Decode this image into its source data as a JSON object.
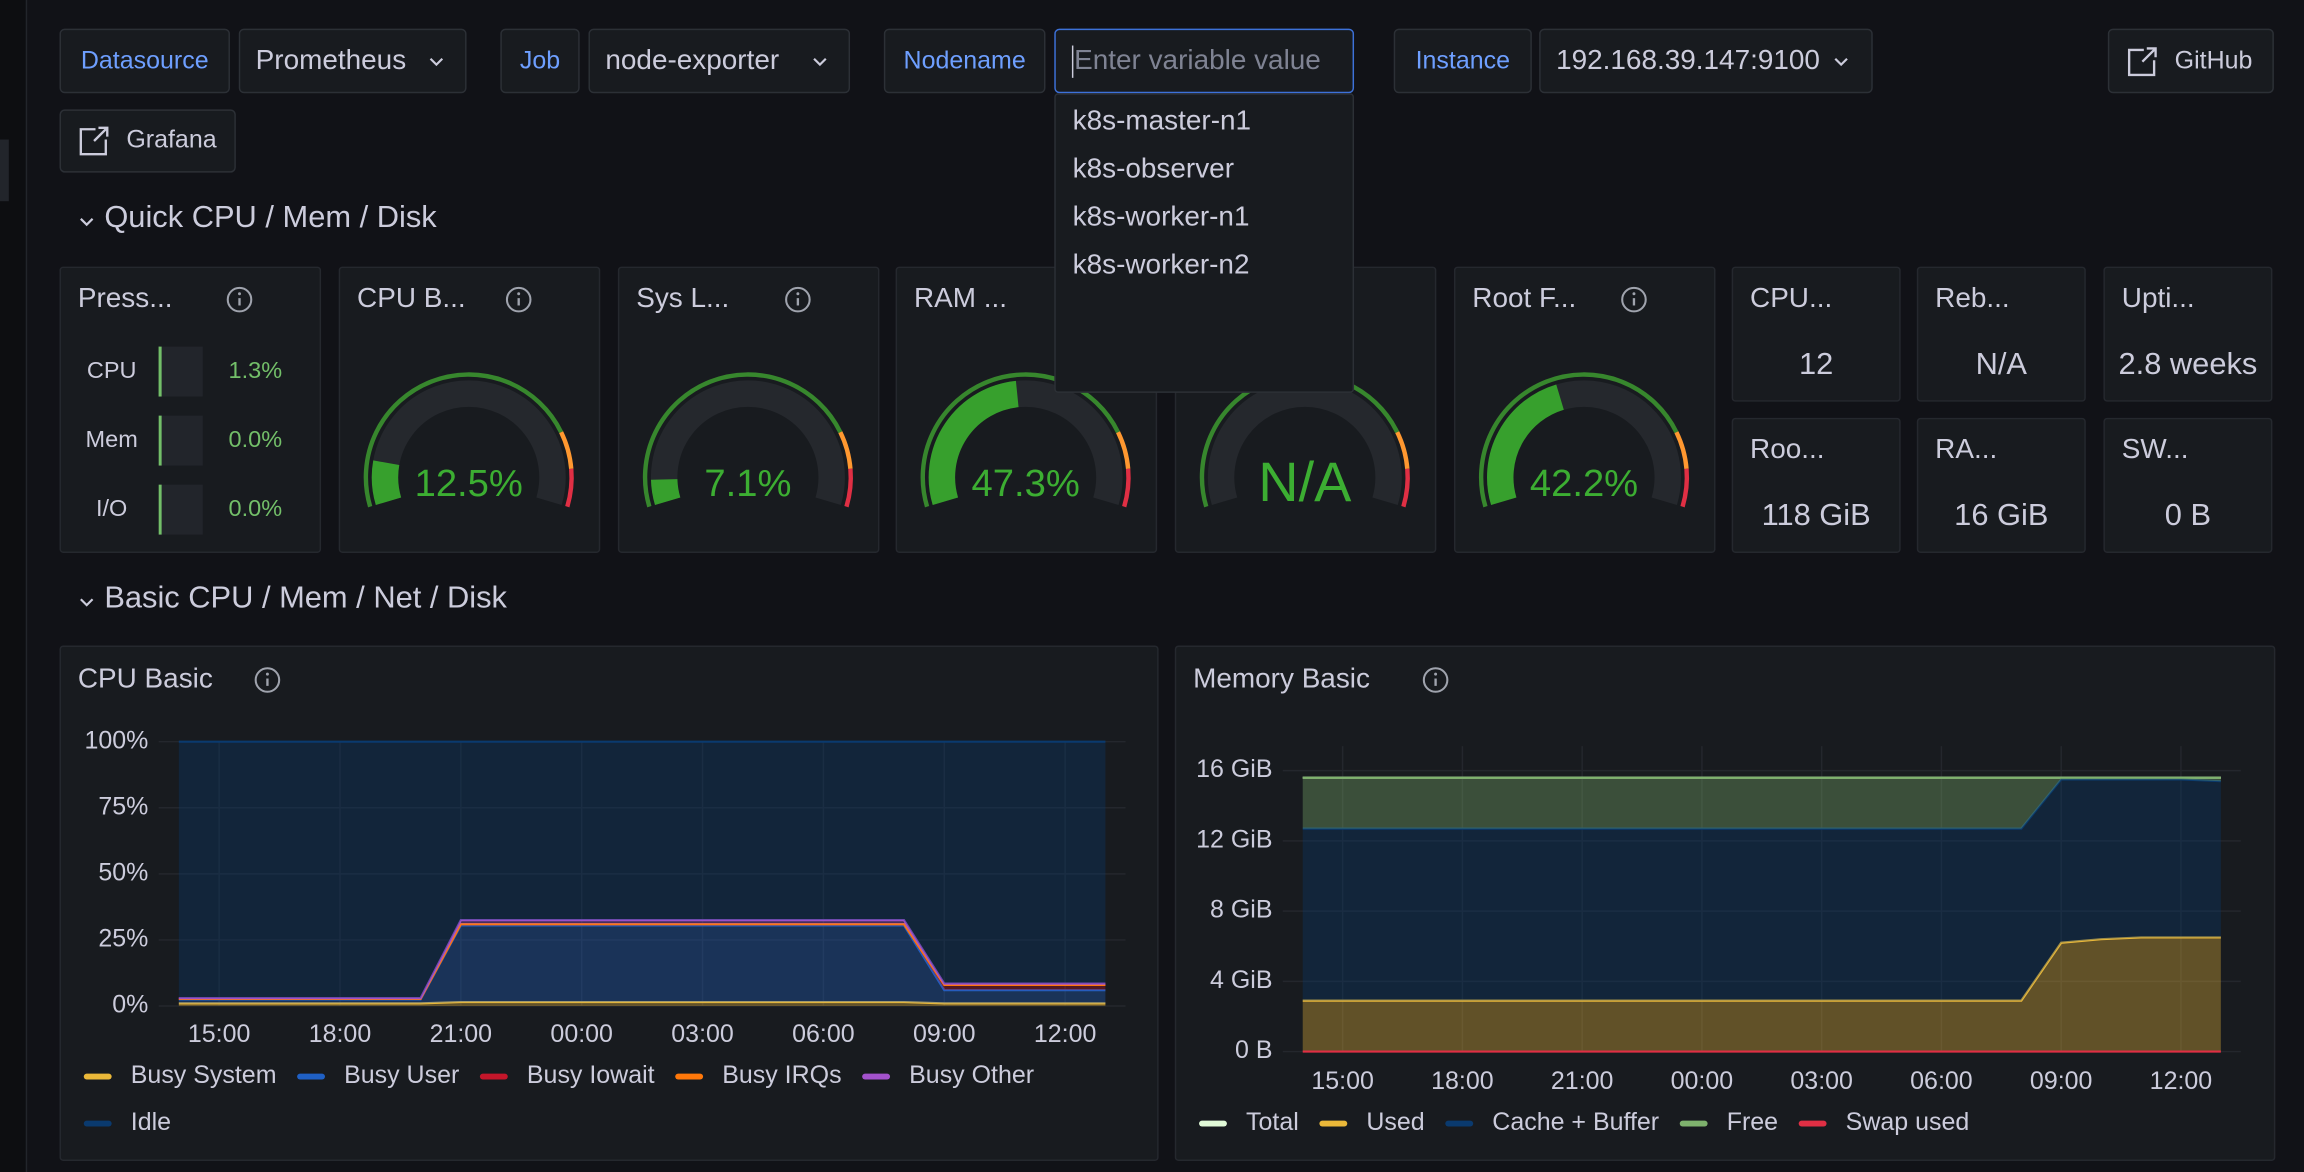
{
  "toolbar": {
    "variables": [
      {
        "label": "Datasource",
        "value": "Prometheus"
      },
      {
        "label": "Job",
        "value": "node-exporter"
      },
      {
        "label": "Nodename",
        "placeholder": "Enter variable value"
      },
      {
        "label": "Instance",
        "value": "192.168.39.147:9100"
      }
    ],
    "links": [
      "GitHub",
      "Grafana"
    ]
  },
  "dropdown": {
    "options": [
      "k8s-master-n1",
      "k8s-observer",
      "k8s-worker-n1",
      "k8s-worker-n2"
    ]
  },
  "sections": [
    "Quick CPU / Mem / Disk",
    "Basic CPU / Mem / Net / Disk"
  ],
  "pressure": {
    "title": "Press...",
    "rows": [
      {
        "label": "CPU",
        "value": 1.3,
        "value_label": "1.3%"
      },
      {
        "label": "Mem",
        "value": 0.0,
        "value_label": "0.0%"
      },
      {
        "label": "I/O",
        "value": 0.0,
        "value_label": "0.0%"
      }
    ]
  },
  "gauges": [
    {
      "title": "CPU B...",
      "value": 12.5,
      "value_label": "12.5%"
    },
    {
      "title": "Sys L...",
      "value": 7.1,
      "value_label": "7.1%"
    },
    {
      "title": "RAM ...",
      "value": 47.3,
      "value_label": "47.3%"
    },
    {
      "value": null,
      "value_label": "N/A"
    },
    {
      "title": "Root F...",
      "value": 42.2,
      "value_label": "42.2%"
    }
  ],
  "stats": [
    {
      "title": "CPU...",
      "value": "12"
    },
    {
      "title": "Reb...",
      "value": "N/A"
    },
    {
      "title": "Upti...",
      "value": "2.8 weeks"
    },
    {
      "title": "Roo...",
      "value": "118 GiB"
    },
    {
      "title": "RA...",
      "value": "16 GiB"
    },
    {
      "title": "SW...",
      "value": "0 B"
    }
  ],
  "chart_data": [
    {
      "type": "line",
      "title": "CPU Basic",
      "stacked": true,
      "categories": [
        null,
        "15:00",
        null,
        null,
        "18:00",
        null,
        null,
        "21:00",
        null,
        null,
        "00:00",
        null,
        null,
        "03:00",
        null,
        null,
        "06:00",
        null,
        null,
        "09:00",
        null,
        null,
        "12:00",
        null
      ],
      "ylim": [
        0,
        100
      ],
      "yticks": [
        {
          "value": 0,
          "label": "0%"
        },
        {
          "value": 25,
          "label": "25%"
        },
        {
          "value": 50,
          "label": "50%"
        },
        {
          "value": 75,
          "label": "75%"
        },
        {
          "value": 100,
          "label": "100%"
        }
      ],
      "grid": true,
      "series": [
        {
          "name": "Busy System",
          "color": "#EAB839",
          "values": [
            1,
            1,
            1,
            1,
            1,
            1,
            1,
            1.5,
            1.5,
            1.5,
            1.5,
            1.5,
            1.5,
            1.5,
            1.5,
            1.5,
            1.5,
            1.5,
            1.5,
            1,
            1,
            1,
            1,
            1
          ]
        },
        {
          "name": "Busy User",
          "color": "#1F60C4",
          "values": [
            1.5,
            1.5,
            1.5,
            1.5,
            1.5,
            1.5,
            1.5,
            29,
            29,
            29,
            29,
            29,
            29,
            29,
            29,
            29,
            29,
            29,
            29,
            5,
            5,
            5,
            5,
            5
          ]
        },
        {
          "name": "Busy Iowait",
          "color": "#C4162A",
          "values": [
            0.2,
            0.2,
            0.2,
            0.2,
            0.2,
            0.2,
            0.2,
            0.5,
            0.5,
            0.5,
            0.5,
            0.5,
            0.5,
            0.5,
            0.5,
            0.5,
            0.5,
            0.5,
            0.5,
            2,
            2,
            2,
            2,
            2
          ]
        },
        {
          "name": "Busy IRQs",
          "color": "#FF780A",
          "values": [
            0,
            0,
            0,
            0,
            0,
            0,
            0,
            0,
            0,
            0,
            0,
            0,
            0,
            0,
            0,
            0,
            0,
            0,
            0,
            0,
            0,
            0,
            0,
            0
          ]
        },
        {
          "name": "Busy Other",
          "color": "#A352CC",
          "values": [
            0.3,
            0.3,
            0.3,
            0.3,
            0.3,
            0.3,
            0.3,
            1.5,
            1.5,
            1.5,
            1.5,
            1.5,
            1.5,
            1.5,
            1.5,
            1.5,
            1.5,
            1.5,
            1.5,
            0.5,
            0.5,
            0.5,
            0.5,
            0.5
          ]
        },
        {
          "name": "Idle",
          "color": "#0A3A6E",
          "values": [
            97,
            97,
            97,
            97,
            97,
            97,
            97,
            67.5,
            67.5,
            67.5,
            67.5,
            67.5,
            67.5,
            67.5,
            67.5,
            67.5,
            67.5,
            67.5,
            67.5,
            91.5,
            91.5,
            91.5,
            91.5,
            91.5
          ]
        }
      ]
    },
    {
      "type": "line",
      "title": "Memory Basic",
      "categories": [
        null,
        "15:00",
        null,
        null,
        "18:00",
        null,
        null,
        "21:00",
        null,
        null,
        "00:00",
        null,
        null,
        "03:00",
        null,
        null,
        "06:00",
        null,
        null,
        "09:00",
        null,
        null,
        "12:00",
        null
      ],
      "ylim": [
        0,
        17.4
      ],
      "yticks": [
        {
          "value": 0,
          "label": "0 B"
        },
        {
          "value": 4,
          "label": "4 GiB"
        },
        {
          "value": 8,
          "label": "8 GiB"
        },
        {
          "value": 12,
          "label": "12 GiB"
        },
        {
          "value": 16,
          "label": "16 GiB"
        }
      ],
      "grid": true,
      "series": [
        {
          "name": "Total",
          "color": "#E0F9D7",
          "values": [
            15.6,
            15.6,
            15.6,
            15.6,
            15.6,
            15.6,
            15.6,
            15.6,
            15.6,
            15.6,
            15.6,
            15.6,
            15.6,
            15.6,
            15.6,
            15.6,
            15.6,
            15.6,
            15.6,
            15.6,
            15.6,
            15.6,
            15.6,
            15.6
          ]
        },
        {
          "name": "Used",
          "color": "#EAB839",
          "stack": true,
          "values": [
            2.9,
            2.9,
            2.9,
            2.9,
            2.9,
            2.9,
            2.9,
            2.9,
            2.9,
            2.9,
            2.9,
            2.9,
            2.9,
            2.9,
            2.9,
            2.9,
            2.9,
            2.9,
            2.9,
            6.2,
            6.4,
            6.5,
            6.5,
            6.5
          ]
        },
        {
          "name": "Cache + Buffer",
          "color": "#0A3A6E",
          "stack": true,
          "values": [
            9.8,
            9.8,
            9.8,
            9.8,
            9.8,
            9.8,
            9.8,
            9.8,
            9.8,
            9.8,
            9.8,
            9.8,
            9.8,
            9.8,
            9.8,
            9.8,
            9.8,
            9.8,
            9.8,
            9.3,
            9.1,
            9.0,
            9.0,
            8.9
          ]
        },
        {
          "name": "Free",
          "color": "#7EB26D",
          "stack": true,
          "values": [
            2.9,
            2.9,
            2.9,
            2.9,
            2.9,
            2.9,
            2.9,
            2.9,
            2.9,
            2.9,
            2.9,
            2.9,
            2.9,
            2.9,
            2.9,
            2.9,
            2.9,
            2.9,
            2.9,
            0.1,
            0.1,
            0.1,
            0.1,
            0.2
          ]
        },
        {
          "name": "Swap used",
          "color": "#E02F44",
          "values": [
            0,
            0,
            0,
            0,
            0,
            0,
            0,
            0,
            0,
            0,
            0,
            0,
            0,
            0,
            0,
            0,
            0,
            0,
            0,
            0,
            0,
            0,
            0,
            0
          ]
        }
      ]
    }
  ]
}
